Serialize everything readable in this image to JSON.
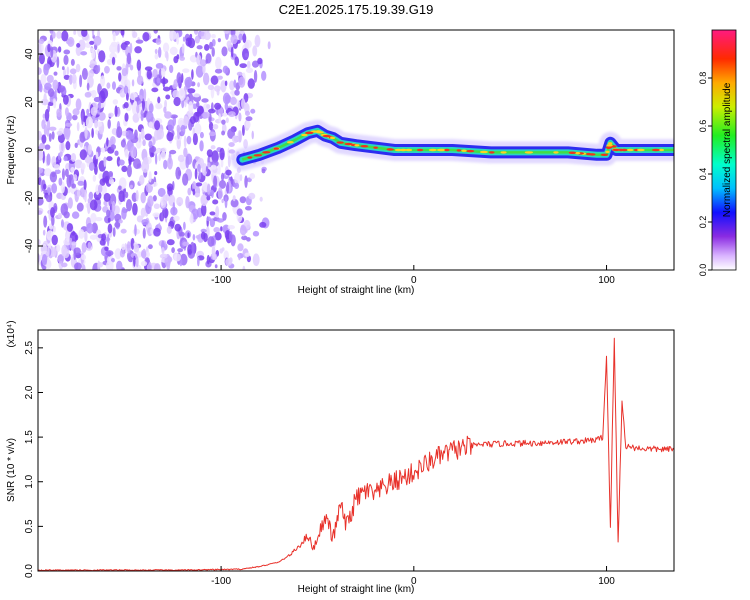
{
  "title": "C2E1.2025.175.19.39.G19",
  "chart_data": [
    {
      "type": "heatmap",
      "xlabel": "Height of straight line (km)",
      "ylabel": "Frequency (Hz)",
      "xlim": [
        -195,
        135
      ],
      "ylim": [
        -50,
        50
      ],
      "xticks": [
        -100,
        0,
        100
      ],
      "yticks": [
        -40,
        -20,
        0,
        20,
        40
      ],
      "colorbar": {
        "label": "Normalized spectral amplitude",
        "range": [
          0,
          1
        ],
        "ticks": [
          "0.0",
          "0.2",
          "0.4",
          "0.6",
          "0.8"
        ]
      },
      "noise_region": {
        "x": [
          -195,
          -85
        ],
        "y": [
          -50,
          50
        ]
      },
      "signal_track": {
        "x": [
          -89,
          -80,
          -70,
          -62,
          -55,
          -50,
          -46,
          -42,
          -38,
          -30,
          -20,
          -10,
          0,
          10,
          20,
          40,
          60,
          80,
          95,
          100,
          102,
          105,
          110,
          120,
          135
        ],
        "y": [
          -4,
          -2,
          1,
          4,
          7,
          8,
          6,
          5,
          3,
          2,
          1,
          0,
          0,
          0,
          0,
          -1,
          -1,
          -1,
          -2,
          -2,
          3,
          0,
          0,
          0,
          0
        ]
      },
      "colors": {
        "noise": "#7a3ff0",
        "track_outer": "#2d2cf0",
        "track_mid": "#28d6c4",
        "track_core": "#f0321e"
      }
    },
    {
      "type": "line",
      "xlabel": "Height of straight line (km)",
      "ylabel": "SNR (10 * v/v)",
      "y_multiplier": "(x10⁴)",
      "xlim": [
        -195,
        135
      ],
      "ylim": [
        0,
        2.7
      ],
      "xticks": [
        -100,
        0,
        100
      ],
      "yticks": [
        "0.0",
        "0.5",
        "1.0",
        "1.5",
        "2.0",
        "2.5"
      ],
      "series": [
        {
          "color": "#e8322b",
          "x": [
            -195,
            -160,
            -120,
            -90,
            -80,
            -70,
            -63,
            -58,
            -55,
            -52,
            -48,
            -45,
            -42,
            -38,
            -35,
            -30,
            -25,
            -20,
            -15,
            -10,
            -5,
            0,
            5,
            10,
            15,
            20,
            25,
            30,
            35,
            40,
            50,
            60,
            70,
            80,
            90,
            95,
            98,
            100,
            102,
            104,
            106,
            108,
            110,
            115,
            120,
            135
          ],
          "y": [
            0.01,
            0.01,
            0.01,
            0.02,
            0.05,
            0.1,
            0.2,
            0.32,
            0.4,
            0.25,
            0.5,
            0.6,
            0.35,
            0.75,
            0.5,
            0.8,
            0.9,
            0.85,
            0.95,
            1.0,
            1.05,
            1.1,
            1.18,
            1.25,
            1.3,
            1.35,
            1.38,
            1.4,
            1.42,
            1.42,
            1.43,
            1.43,
            1.44,
            1.45,
            1.46,
            1.47,
            1.5,
            2.4,
            0.5,
            2.6,
            0.3,
            1.9,
            1.4,
            1.38,
            1.37,
            1.36
          ]
        }
      ]
    }
  ]
}
